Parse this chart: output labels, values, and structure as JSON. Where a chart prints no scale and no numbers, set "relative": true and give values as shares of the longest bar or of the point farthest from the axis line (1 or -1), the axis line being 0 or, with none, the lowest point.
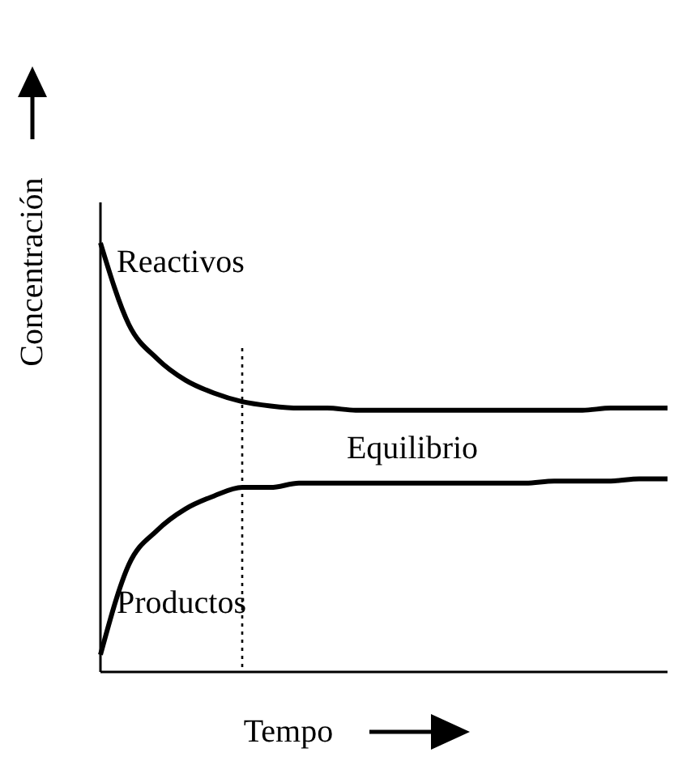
{
  "chart_data": {
    "type": "line",
    "relative": true,
    "xlabel": "Tempo",
    "ylabel": "Concentración",
    "categories": [
      null,
      null,
      null,
      null,
      null,
      null,
      null,
      null,
      null,
      null,
      null,
      null,
      null,
      null,
      null,
      null,
      null,
      null,
      null,
      null,
      null
    ],
    "series": [
      {
        "name": "Reactivos",
        "color": "#000000",
        "values": [
          1.0,
          0.81,
          0.73,
          0.68,
          0.65,
          0.63,
          0.62,
          0.615,
          0.615,
          0.61,
          0.61,
          0.61,
          0.61,
          0.61,
          0.61,
          0.61,
          0.61,
          0.61,
          0.615,
          0.615,
          0.615
        ]
      },
      {
        "name": "Productos",
        "color": "#000000",
        "values": [
          0.04,
          0.25,
          0.33,
          0.38,
          0.41,
          0.43,
          0.43,
          0.44,
          0.44,
          0.44,
          0.44,
          0.44,
          0.44,
          0.44,
          0.44,
          0.44,
          0.445,
          0.445,
          0.445,
          0.45,
          0.45
        ]
      }
    ],
    "annotations": [
      {
        "text": "Equilibrio"
      }
    ],
    "marker": "none",
    "line_style": "solid"
  }
}
